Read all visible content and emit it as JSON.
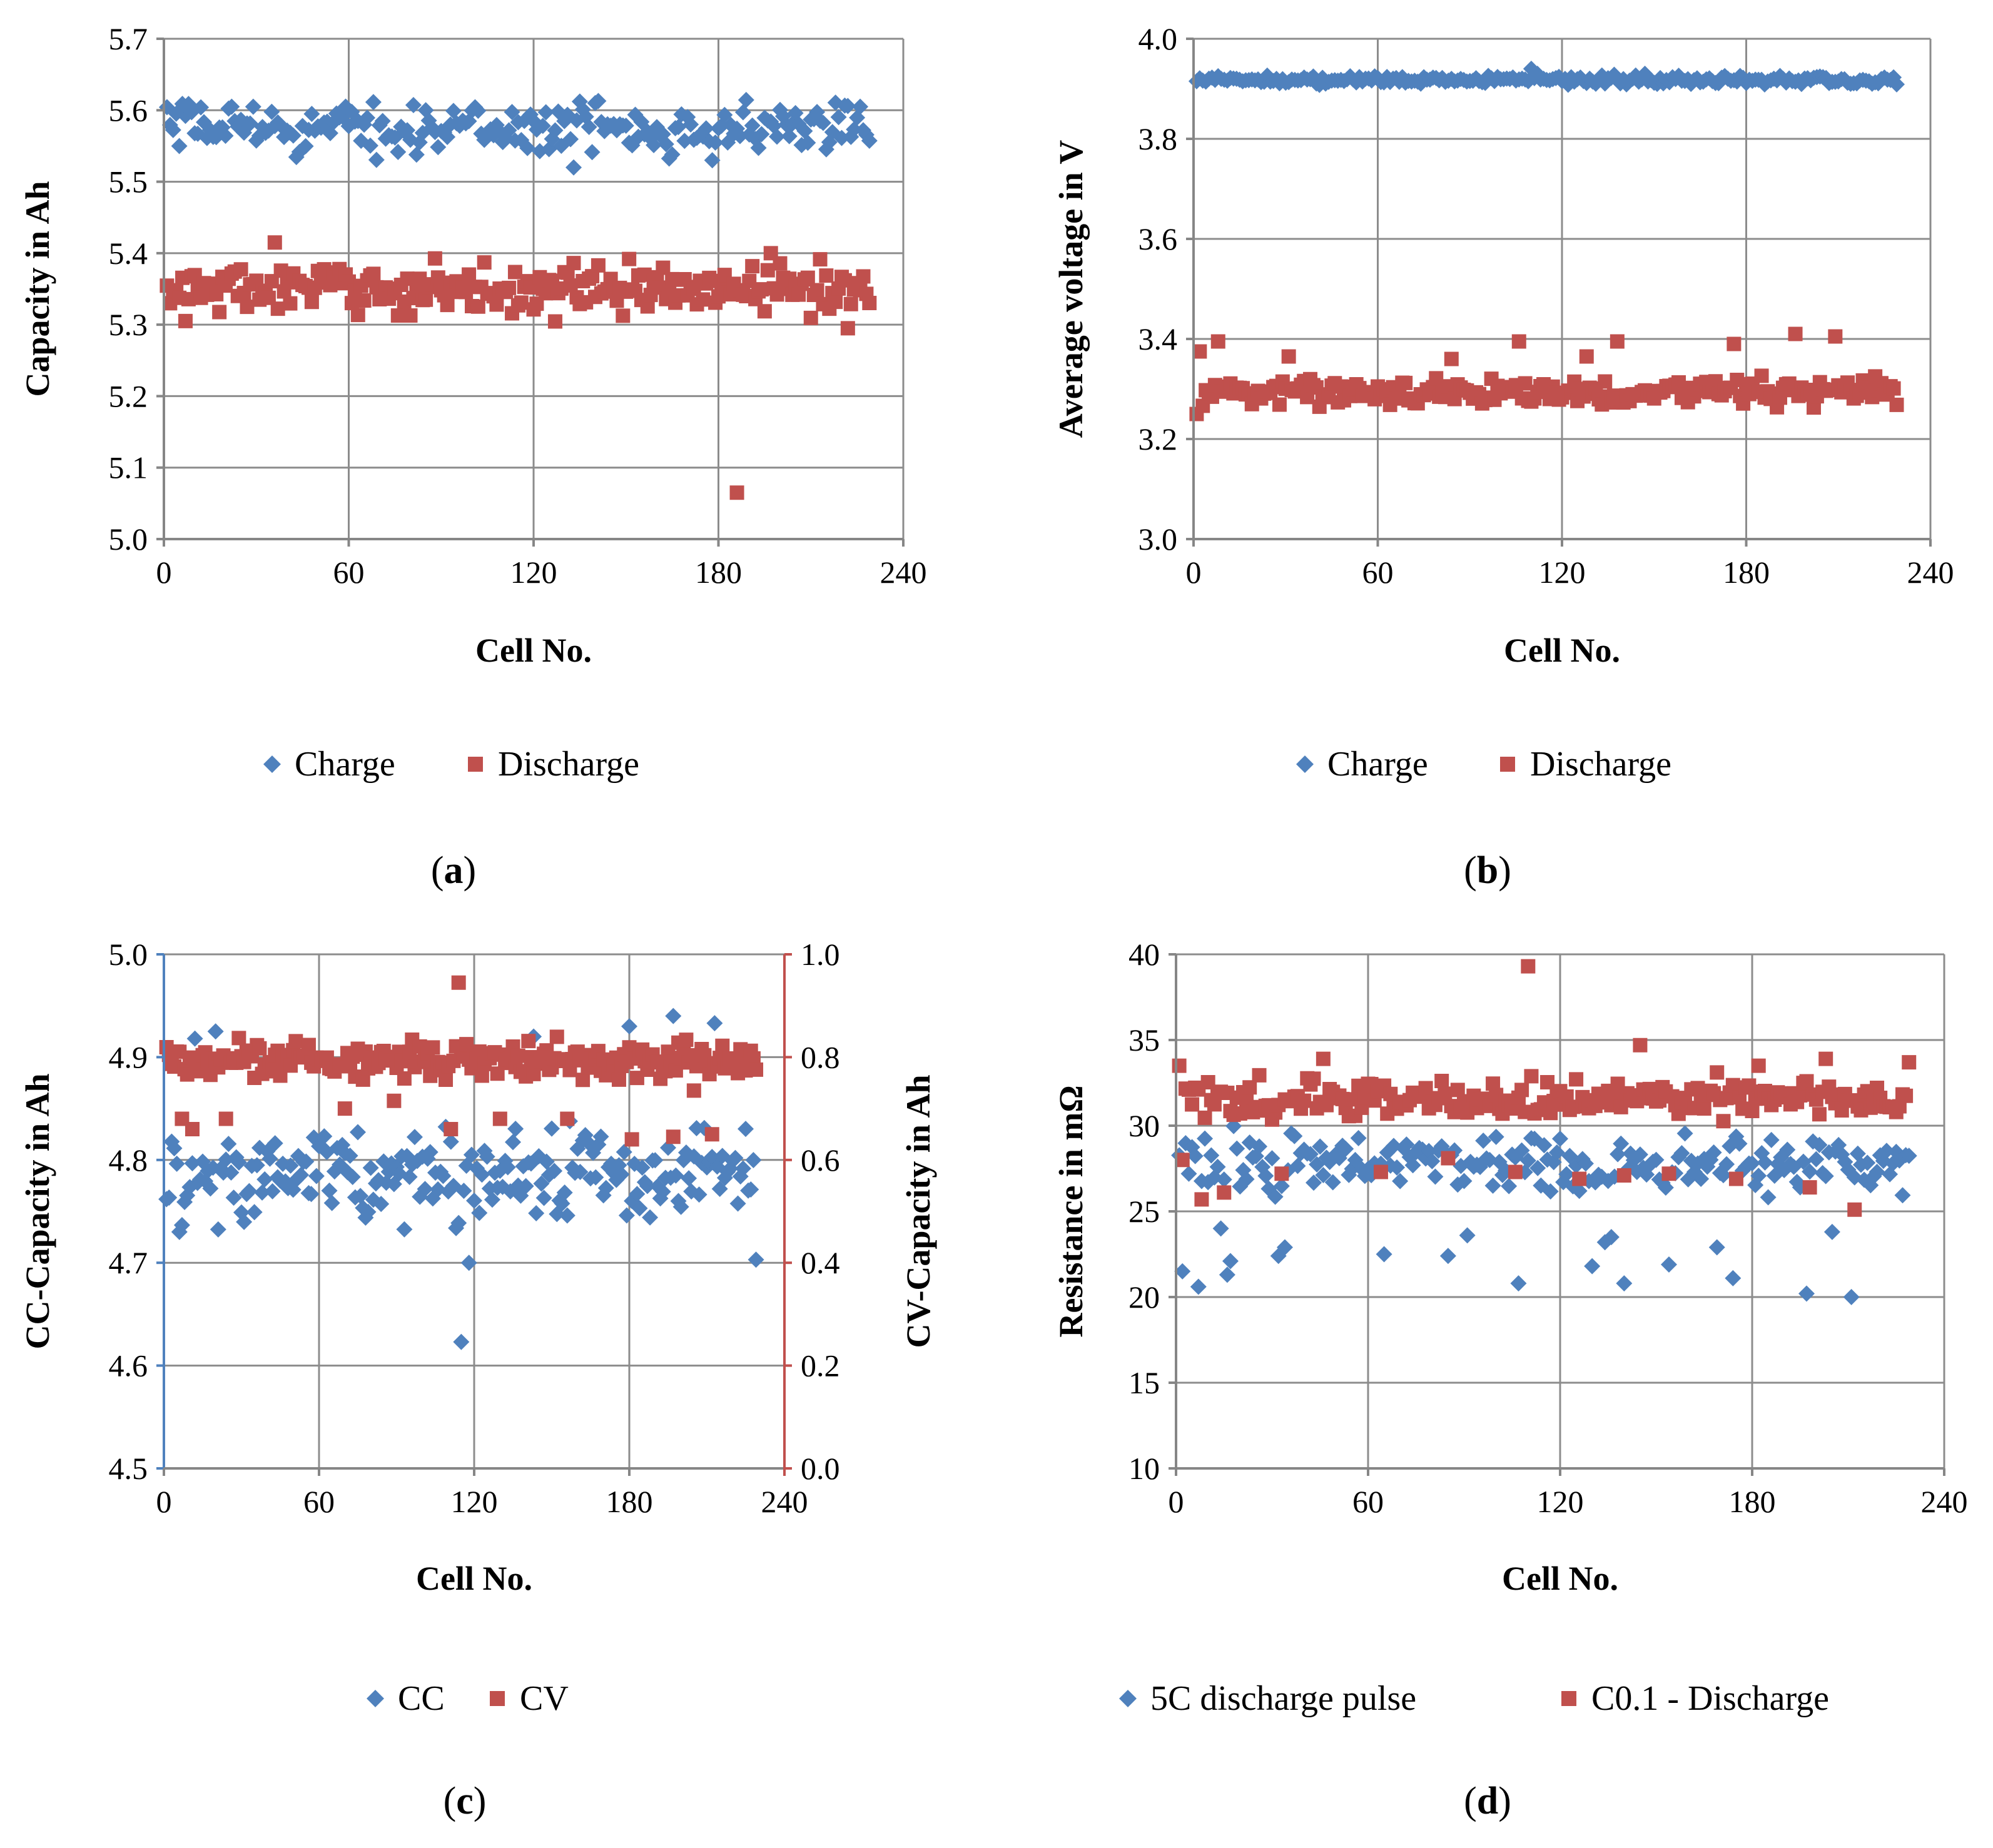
{
  "colors": {
    "blue": "#4F81BD",
    "red": "#C0504D",
    "grid": "#8C8C8C",
    "axis": "#868686",
    "text": "#000000"
  },
  "chart_data": [
    {
      "panel": "a",
      "type": "scatter",
      "xlabel": "Cell No.",
      "ylabel": "Capacity in Ah",
      "xlim": [
        0,
        240
      ],
      "xticks": [
        "0",
        "60",
        "120",
        "180",
        "240"
      ],
      "ylim": [
        5.0,
        5.7
      ],
      "yticks": [
        "5.0",
        "5.1",
        "5.2",
        "5.3",
        "5.4",
        "5.5",
        "5.6",
        "5.7"
      ],
      "grid": true,
      "legend": "bottom",
      "label_open": "(",
      "label_letter": "a",
      "label_close": ")",
      "series": [
        {
          "name": "Charge",
          "marker": "diamond",
          "color": "#4F81BD",
          "axis": "left",
          "count": 229,
          "base": 5.575,
          "spread": 0.022,
          "outliers": [
            [
              133,
              5.52
            ],
            [
              178,
              5.53
            ],
            [
              140,
              5.61
            ],
            [
              29,
              5.605
            ],
            [
              22,
              5.605
            ],
            [
              226,
              5.605
            ]
          ]
        },
        {
          "name": "Discharge",
          "marker": "square",
          "color": "#C0504D",
          "axis": "left",
          "count": 229,
          "base": 5.35,
          "spread": 0.022,
          "outliers": [
            [
              186,
              5.065
            ],
            [
              36,
              5.415
            ],
            [
              2,
              5.33
            ],
            [
              7,
              5.305
            ],
            [
              197,
              5.4
            ],
            [
              222,
              5.295
            ]
          ]
        }
      ]
    },
    {
      "panel": "b",
      "type": "scatter",
      "xlabel": "Cell No.",
      "ylabel": "Average voltage in V",
      "xlim": [
        0,
        240
      ],
      "xticks": [
        "0",
        "60",
        "120",
        "180",
        "240"
      ],
      "ylim": [
        3.0,
        4.0
      ],
      "yticks": [
        "3.0",
        "3.2",
        "3.4",
        "3.6",
        "3.8",
        "4.0"
      ],
      "grid": true,
      "legend": "bottom",
      "label_open": "(",
      "label_letter": "b",
      "label_close": ")",
      "series": [
        {
          "name": "Charge",
          "marker": "diamond",
          "color": "#4F81BD",
          "axis": "left",
          "count": 229,
          "base": 3.918,
          "spread": 0.006,
          "outliers": [
            [
              110,
              3.94
            ],
            [
              147,
              3.93
            ]
          ]
        },
        {
          "name": "Discharge",
          "marker": "square",
          "color": "#C0504D",
          "axis": "left",
          "count": 229,
          "base": 3.295,
          "spread": 0.018,
          "outliers": [
            [
              1,
              3.25
            ],
            [
              2,
              3.375
            ],
            [
              8,
              3.395
            ],
            [
              106,
              3.395
            ],
            [
              138,
              3.395
            ],
            [
              176,
              3.39
            ],
            [
              196,
              3.41
            ],
            [
              209,
              3.405
            ],
            [
              128,
              3.365
            ],
            [
              84,
              3.36
            ],
            [
              31,
              3.365
            ]
          ]
        }
      ]
    },
    {
      "panel": "c",
      "type": "scatter",
      "xlabel": "Cell No.",
      "ylabel": "CC-Capacity in Ah",
      "y2label": "CV-Capacity in Ah",
      "xlim": [
        0,
        240
      ],
      "xticks": [
        "0",
        "60",
        "120",
        "180",
        "240"
      ],
      "ylim": [
        4.5,
        5.0
      ],
      "yticks": [
        "4.5",
        "4.6",
        "4.7",
        "4.8",
        "4.9",
        "5.0"
      ],
      "y2lim": [
        0.0,
        1.0
      ],
      "y2ticks": [
        "0.0",
        "0.2",
        "0.4",
        "0.6",
        "0.8",
        "1.0"
      ],
      "grid": true,
      "legend": "bottom",
      "label_open": "(",
      "label_letter": "c",
      "label_close": ")",
      "series": [
        {
          "name": "CC",
          "marker": "diamond",
          "color": "#4F81BD",
          "axis": "left",
          "count": 229,
          "base": 4.785,
          "spread": 0.03,
          "outliers": [
            [
              115,
              4.623
            ],
            [
              118,
              4.7
            ],
            [
              229,
              4.703
            ],
            [
              20,
              4.925
            ],
            [
              12,
              4.918
            ],
            [
              197,
              4.94
            ],
            [
              180,
              4.93
            ],
            [
              213,
              4.933
            ],
            [
              143,
              4.92
            ],
            [
              6,
              4.73
            ]
          ]
        },
        {
          "name": "CV",
          "marker": "square",
          "color": "#C0504D",
          "axis": "right",
          "count": 229,
          "base": 0.795,
          "spread": 0.022,
          "outliers": [
            [
              114,
              0.945
            ],
            [
              7,
              0.68
            ],
            [
              11,
              0.66
            ],
            [
              70,
              0.7
            ],
            [
              111,
              0.66
            ],
            [
              156,
              0.68
            ],
            [
              181,
              0.64
            ],
            [
              197,
              0.645
            ],
            [
              205,
              0.735
            ],
            [
              212,
              0.65
            ],
            [
              130,
              0.68
            ],
            [
              24,
              0.68
            ],
            [
              89,
              0.715
            ]
          ]
        }
      ]
    },
    {
      "panel": "d",
      "type": "scatter",
      "xlabel": "Cell No.",
      "ylabel": "Resistance in mΩ",
      "xlim": [
        0,
        240
      ],
      "xticks": [
        "0",
        "60",
        "120",
        "180",
        "240"
      ],
      "ylim": [
        10,
        40
      ],
      "yticks": [
        "10",
        "15",
        "20",
        "25",
        "30",
        "35",
        "40"
      ],
      "grid": true,
      "legend": "bottom",
      "label_open": "(",
      "label_letter": "d",
      "label_close": ")",
      "series": [
        {
          "name": "5C discharge pulse",
          "marker": "diamond",
          "color": "#4F81BD",
          "axis": "left",
          "count": 229,
          "base": 27.8,
          "spread": 1.1,
          "outliers": [
            [
              2,
              21.5
            ],
            [
              7,
              20.6
            ],
            [
              14,
              22.7
            ],
            [
              16,
              21.3
            ],
            [
              17,
              22.1
            ],
            [
              32,
              22.4
            ],
            [
              34,
              22.9
            ],
            [
              65,
              22.5
            ],
            [
              85,
              22.4
            ],
            [
              91,
              23.6
            ],
            [
              107,
              20.8
            ],
            [
              130,
              21.8
            ],
            [
              134,
              23.2
            ],
            [
              136,
              23.5
            ],
            [
              140,
              20.8
            ],
            [
              154,
              21.9
            ],
            [
              169,
              22.9
            ],
            [
              174,
              21.1
            ],
            [
              197,
              20.2
            ],
            [
              205,
              23.8
            ],
            [
              211,
              20.0
            ],
            [
              14,
              24.0
            ]
          ]
        },
        {
          "name": "C0.1 - Discharge",
          "marker": "square",
          "color": "#C0504D",
          "axis": "left",
          "count": 229,
          "base": 31.6,
          "spread": 0.7,
          "outliers": [
            [
              110,
              39.3
            ],
            [
              1,
              33.5
            ],
            [
              46,
              33.9
            ],
            [
              145,
              34.7
            ],
            [
              203,
              33.9
            ],
            [
              2,
              28.0
            ],
            [
              8,
              25.7
            ],
            [
              15,
              26.1
            ],
            [
              33,
              27.2
            ],
            [
              64,
              27.3
            ],
            [
              85,
              28.1
            ],
            [
              106,
              27.3
            ],
            [
              126,
              26.9
            ],
            [
              140,
              27.1
            ],
            [
              154,
              27.2
            ],
            [
              175,
              26.9
            ],
            [
              198,
              26.4
            ],
            [
              212,
              25.1
            ],
            [
              229,
              33.7
            ],
            [
              182,
              33.5
            ]
          ]
        }
      ]
    }
  ]
}
